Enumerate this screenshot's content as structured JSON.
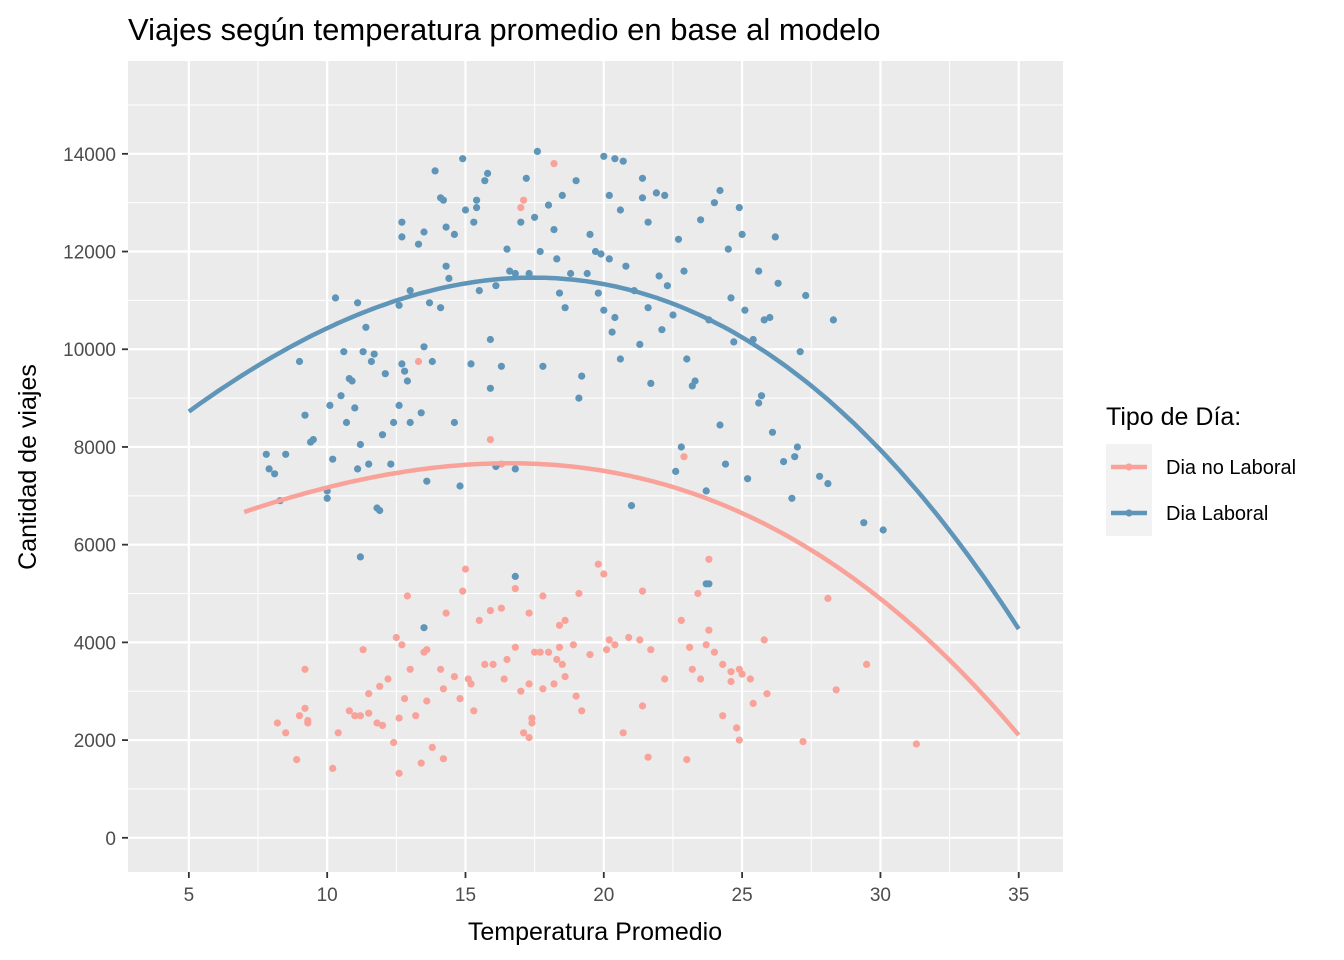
{
  "chart_data": {
    "type": "scatter",
    "title": "Viajes según temperatura promedio en base al modelo",
    "xlabel": "Temperatura Promedio",
    "ylabel": "Cantidad de viajes",
    "xlim": [
      2.8,
      36.6
    ],
    "ylim": [
      -700,
      15900
    ],
    "xticks": [
      5,
      10,
      15,
      20,
      25,
      30,
      35
    ],
    "yticks": [
      0,
      2000,
      4000,
      6000,
      8000,
      10000,
      12000,
      14000
    ],
    "xtick_labels": [
      "5",
      "10",
      "15",
      "20",
      "25",
      "30",
      "35"
    ],
    "ytick_labels": [
      "0",
      "2000",
      "4000",
      "6000",
      "8000",
      "10000",
      "12000",
      "14000"
    ],
    "grid": true,
    "legend": {
      "title": "Tipo de Día:",
      "position": "right",
      "entries": [
        {
          "label": "Dia no Laboral",
          "color": "#f8a29a"
        },
        {
          "label": "Dia Laboral",
          "color": "#5f95b8"
        }
      ]
    },
    "series": [
      {
        "name": "Dia no Laboral",
        "color": "#f8a29a",
        "points": [
          [
            8.2,
            2350
          ],
          [
            8.5,
            2150
          ],
          [
            8.9,
            1600
          ],
          [
            9.0,
            2500
          ],
          [
            9.2,
            3450
          ],
          [
            9.2,
            2650
          ],
          [
            9.3,
            2400
          ],
          [
            9.3,
            2350
          ],
          [
            10.2,
            1420
          ],
          [
            10.4,
            2150
          ],
          [
            10.8,
            2600
          ],
          [
            11.0,
            2500
          ],
          [
            11.2,
            2500
          ],
          [
            11.3,
            3850
          ],
          [
            11.5,
            2550
          ],
          [
            11.5,
            2950
          ],
          [
            11.8,
            2350
          ],
          [
            11.9,
            3100
          ],
          [
            12.0,
            2300
          ],
          [
            12.2,
            3250
          ],
          [
            12.4,
            1950
          ],
          [
            12.5,
            4100
          ],
          [
            12.6,
            1320
          ],
          [
            12.6,
            2450
          ],
          [
            12.7,
            3950
          ],
          [
            12.8,
            2850
          ],
          [
            12.9,
            4950
          ],
          [
            13.0,
            3450
          ],
          [
            13.2,
            2500
          ],
          [
            13.4,
            1530
          ],
          [
            13.5,
            3800
          ],
          [
            13.6,
            3850
          ],
          [
            13.6,
            2800
          ],
          [
            13.8,
            1850
          ],
          [
            14.1,
            3450
          ],
          [
            14.2,
            1620
          ],
          [
            14.2,
            3050
          ],
          [
            14.3,
            4600
          ],
          [
            14.6,
            3300
          ],
          [
            14.8,
            2850
          ],
          [
            14.9,
            5050
          ],
          [
            15.0,
            5500
          ],
          [
            15.1,
            3250
          ],
          [
            15.2,
            3150
          ],
          [
            15.3,
            2600
          ],
          [
            15.5,
            4450
          ],
          [
            15.7,
            3550
          ],
          [
            15.9,
            4650
          ],
          [
            16.0,
            3550
          ],
          [
            16.3,
            4700
          ],
          [
            16.4,
            3250
          ],
          [
            16.5,
            3650
          ],
          [
            16.8,
            3900
          ],
          [
            16.8,
            5100
          ],
          [
            17.0,
            3000
          ],
          [
            17.1,
            2150
          ],
          [
            17.3,
            3150
          ],
          [
            17.3,
            4600
          ],
          [
            17.3,
            2050
          ],
          [
            17.4,
            2450
          ],
          [
            17.4,
            2350
          ],
          [
            17.5,
            3800
          ],
          [
            17.7,
            3800
          ],
          [
            17.8,
            3050
          ],
          [
            17.8,
            4950
          ],
          [
            18.0,
            3800
          ],
          [
            18.2,
            3150
          ],
          [
            18.3,
            3650
          ],
          [
            18.4,
            4350
          ],
          [
            18.4,
            3900
          ],
          [
            18.5,
            3550
          ],
          [
            18.6,
            4450
          ],
          [
            18.6,
            3300
          ],
          [
            18.9,
            3950
          ],
          [
            19.0,
            2900
          ],
          [
            19.1,
            5000
          ],
          [
            19.2,
            2600
          ],
          [
            19.5,
            3750
          ],
          [
            19.8,
            5600
          ],
          [
            20.0,
            5400
          ],
          [
            20.1,
            3850
          ],
          [
            20.2,
            4050
          ],
          [
            20.4,
            3950
          ],
          [
            20.7,
            2150
          ],
          [
            20.9,
            4100
          ],
          [
            21.3,
            4050
          ],
          [
            21.4,
            2700
          ],
          [
            21.4,
            5050
          ],
          [
            21.6,
            1650
          ],
          [
            21.7,
            3850
          ],
          [
            22.2,
            3250
          ],
          [
            22.8,
            4450
          ],
          [
            23.0,
            1600
          ],
          [
            23.1,
            3900
          ],
          [
            23.2,
            3450
          ],
          [
            23.4,
            5000
          ],
          [
            23.5,
            3250
          ],
          [
            23.7,
            3950
          ],
          [
            23.8,
            4250
          ],
          [
            23.8,
            5700
          ],
          [
            24.0,
            3800
          ],
          [
            24.3,
            3550
          ],
          [
            24.3,
            2500
          ],
          [
            24.6,
            3400
          ],
          [
            24.6,
            3200
          ],
          [
            24.8,
            2250
          ],
          [
            24.9,
            2000
          ],
          [
            24.9,
            3450
          ],
          [
            25.0,
            3350
          ],
          [
            25.3,
            3250
          ],
          [
            25.4,
            2750
          ],
          [
            25.8,
            4050
          ],
          [
            25.9,
            2950
          ],
          [
            27.2,
            1970
          ],
          [
            28.1,
            4900
          ],
          [
            28.4,
            3030
          ],
          [
            29.5,
            3550
          ],
          [
            31.3,
            1920
          ],
          [
            13.3,
            9750
          ],
          [
            15.9,
            8150
          ],
          [
            16.3,
            7650
          ],
          [
            17.0,
            12900
          ],
          [
            17.1,
            13050
          ],
          [
            18.2,
            13800
          ],
          [
            22.9,
            7800
          ]
        ]
      },
      {
        "name": "Dia Laboral",
        "color": "#5f95b8",
        "points": [
          [
            7.8,
            7850
          ],
          [
            7.9,
            7550
          ],
          [
            8.1,
            7450
          ],
          [
            8.3,
            6900
          ],
          [
            8.5,
            7850
          ],
          [
            9.0,
            9750
          ],
          [
            9.2,
            8650
          ],
          [
            9.4,
            8100
          ],
          [
            9.5,
            8150
          ],
          [
            10.0,
            7100
          ],
          [
            10.0,
            6950
          ],
          [
            10.1,
            8850
          ],
          [
            10.2,
            7750
          ],
          [
            10.3,
            11050
          ],
          [
            10.5,
            9050
          ],
          [
            10.6,
            9950
          ],
          [
            10.7,
            8500
          ],
          [
            10.8,
            9400
          ],
          [
            10.9,
            9350
          ],
          [
            11.0,
            8800
          ],
          [
            11.1,
            7550
          ],
          [
            11.1,
            10950
          ],
          [
            11.2,
            5750
          ],
          [
            11.2,
            8050
          ],
          [
            11.3,
            9950
          ],
          [
            11.4,
            10450
          ],
          [
            11.5,
            7650
          ],
          [
            11.6,
            9750
          ],
          [
            11.7,
            9900
          ],
          [
            11.8,
            6750
          ],
          [
            11.9,
            6700
          ],
          [
            12.0,
            8250
          ],
          [
            12.1,
            9500
          ],
          [
            12.3,
            7650
          ],
          [
            12.4,
            8500
          ],
          [
            12.6,
            8850
          ],
          [
            12.6,
            10900
          ],
          [
            12.7,
            12600
          ],
          [
            12.7,
            12300
          ],
          [
            12.8,
            9550
          ],
          [
            12.9,
            9350
          ],
          [
            13.0,
            11200
          ],
          [
            13.0,
            8500
          ],
          [
            13.3,
            12150
          ],
          [
            13.4,
            8700
          ],
          [
            13.5,
            12400
          ],
          [
            13.5,
            10050
          ],
          [
            13.6,
            7300
          ],
          [
            13.7,
            10950
          ],
          [
            13.8,
            9750
          ],
          [
            13.9,
            13650
          ],
          [
            14.1,
            13100
          ],
          [
            14.2,
            13050
          ],
          [
            14.3,
            11700
          ],
          [
            14.3,
            12500
          ],
          [
            14.4,
            11450
          ],
          [
            14.6,
            12350
          ],
          [
            14.6,
            8500
          ],
          [
            14.8,
            7200
          ],
          [
            14.9,
            13900
          ],
          [
            15.0,
            12850
          ],
          [
            15.2,
            9700
          ],
          [
            15.3,
            12600
          ],
          [
            15.4,
            12900
          ],
          [
            15.4,
            13050
          ],
          [
            15.5,
            11200
          ],
          [
            15.7,
            13450
          ],
          [
            15.8,
            13600
          ],
          [
            15.9,
            10200
          ],
          [
            15.9,
            9200
          ],
          [
            16.1,
            11300
          ],
          [
            16.3,
            9650
          ],
          [
            16.5,
            12050
          ],
          [
            16.6,
            11600
          ],
          [
            16.8,
            7550
          ],
          [
            16.8,
            11550
          ],
          [
            17.0,
            12600
          ],
          [
            17.2,
            13500
          ],
          [
            17.3,
            11550
          ],
          [
            17.5,
            12700
          ],
          [
            17.6,
            14050
          ],
          [
            17.7,
            12000
          ],
          [
            17.8,
            9650
          ],
          [
            18.0,
            12950
          ],
          [
            18.2,
            12450
          ],
          [
            18.3,
            11850
          ],
          [
            18.5,
            13150
          ],
          [
            18.6,
            10850
          ],
          [
            18.8,
            11550
          ],
          [
            19.0,
            13450
          ],
          [
            19.1,
            9000
          ],
          [
            19.2,
            9450
          ],
          [
            19.4,
            11550
          ],
          [
            19.5,
            12350
          ],
          [
            19.7,
            12000
          ],
          [
            19.8,
            11150
          ],
          [
            19.9,
            11950
          ],
          [
            20.0,
            10800
          ],
          [
            20.0,
            13950
          ],
          [
            20.2,
            11850
          ],
          [
            20.2,
            13150
          ],
          [
            20.3,
            10350
          ],
          [
            20.4,
            10650
          ],
          [
            20.4,
            13900
          ],
          [
            20.6,
            12850
          ],
          [
            20.7,
            13850
          ],
          [
            20.8,
            11700
          ],
          [
            21.0,
            6800
          ],
          [
            21.1,
            11200
          ],
          [
            21.3,
            10100
          ],
          [
            21.4,
            13100
          ],
          [
            21.4,
            13500
          ],
          [
            21.6,
            10850
          ],
          [
            21.6,
            12600
          ],
          [
            21.7,
            9300
          ],
          [
            21.9,
            13200
          ],
          [
            22.0,
            11500
          ],
          [
            22.1,
            10400
          ],
          [
            22.2,
            13150
          ],
          [
            22.3,
            11300
          ],
          [
            22.5,
            10700
          ],
          [
            22.6,
            7500
          ],
          [
            22.7,
            12250
          ],
          [
            22.9,
            11600
          ],
          [
            23.0,
            9800
          ],
          [
            23.2,
            9250
          ],
          [
            23.3,
            9350
          ],
          [
            23.5,
            12650
          ],
          [
            23.7,
            7100
          ],
          [
            23.8,
            5200
          ],
          [
            23.8,
            10600
          ],
          [
            24.0,
            13000
          ],
          [
            24.2,
            13250
          ],
          [
            24.2,
            8450
          ],
          [
            24.4,
            7650
          ],
          [
            24.5,
            12050
          ],
          [
            24.6,
            11050
          ],
          [
            24.7,
            10150
          ],
          [
            24.9,
            12900
          ],
          [
            25.0,
            12350
          ],
          [
            25.1,
            10800
          ],
          [
            25.2,
            7350
          ],
          [
            25.4,
            10200
          ],
          [
            25.6,
            11600
          ],
          [
            25.7,
            9050
          ],
          [
            25.8,
            10600
          ],
          [
            26.0,
            10650
          ],
          [
            26.1,
            8300
          ],
          [
            26.2,
            12300
          ],
          [
            26.3,
            11350
          ],
          [
            26.5,
            7700
          ],
          [
            26.8,
            6950
          ],
          [
            27.0,
            8000
          ],
          [
            27.1,
            9950
          ],
          [
            27.3,
            11100
          ],
          [
            27.8,
            7400
          ],
          [
            28.1,
            7250
          ],
          [
            28.3,
            10600
          ],
          [
            29.4,
            6450
          ],
          [
            30.1,
            6300
          ],
          [
            13.5,
            4300
          ],
          [
            16.8,
            5350
          ],
          [
            23.7,
            5200
          ],
          [
            14.1,
            10850
          ],
          [
            12.7,
            9700
          ],
          [
            20.6,
            9800
          ],
          [
            22.8,
            8000
          ],
          [
            25.6,
            8900
          ],
          [
            26.9,
            7800
          ],
          [
            18.4,
            11150
          ],
          [
            16.1,
            7600
          ]
        ]
      }
    ],
    "fit_curves": [
      {
        "name": "Dia no Laboral",
        "color": "#f8a29a",
        "x_range": [
          7,
          35
        ],
        "coefficients": [
          7.64,
          -0.1862,
          -0.3398,
          -0.02485
        ]
      },
      {
        "name": "Dia Laboral",
        "color": "#5f95b8",
        "x_range": [
          5,
          35
        ],
        "coefficients": [
          11.46,
          -0.1099,
          -0.5087,
          -0.0237
        ]
      }
    ]
  }
}
